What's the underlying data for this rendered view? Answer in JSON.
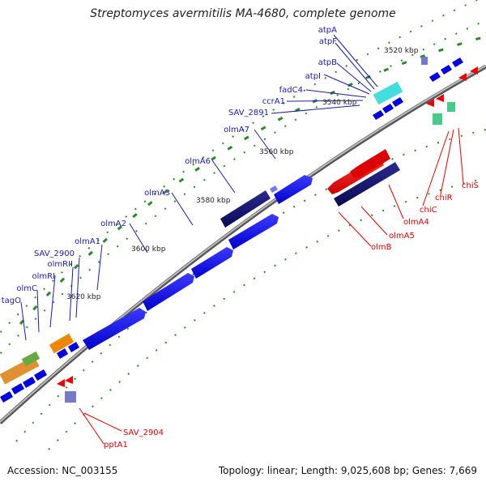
{
  "title": "Streptomyces avermitilis MA-4680, complete genome",
  "footer": {
    "accession": "Accession: NC_003155",
    "summary": "Topology: linear; Length: 9,025,608 bp; Genes: 7,669"
  },
  "colors": {
    "forward_label": "#1a1aa8",
    "reverse_label": "#e00000",
    "backbone": "#8c8c8c",
    "tick": "#2a8a2a"
  },
  "scale_ticks": [
    "3520 kbp",
    "3540 kbp",
    "3560 kbp",
    "3580 kbp",
    "3600 kbp",
    "3620 kbp"
  ],
  "gene_labels_forward": [
    "atpA",
    "atpF",
    "atpB",
    "atpI",
    "fadC4",
    "ccrA1",
    "SAV_2891",
    "olmA7",
    "olmA6",
    "olmA3",
    "olmA2",
    "olmA1",
    "SAV_2900",
    "olmRII",
    "olmRI",
    "olmC",
    "tagO"
  ],
  "gene_labels_reverse": [
    "chiS",
    "chiR",
    "chiC",
    "olmA4",
    "olmA5",
    "olmB",
    "SAV_2904",
    "pptA1"
  ]
}
